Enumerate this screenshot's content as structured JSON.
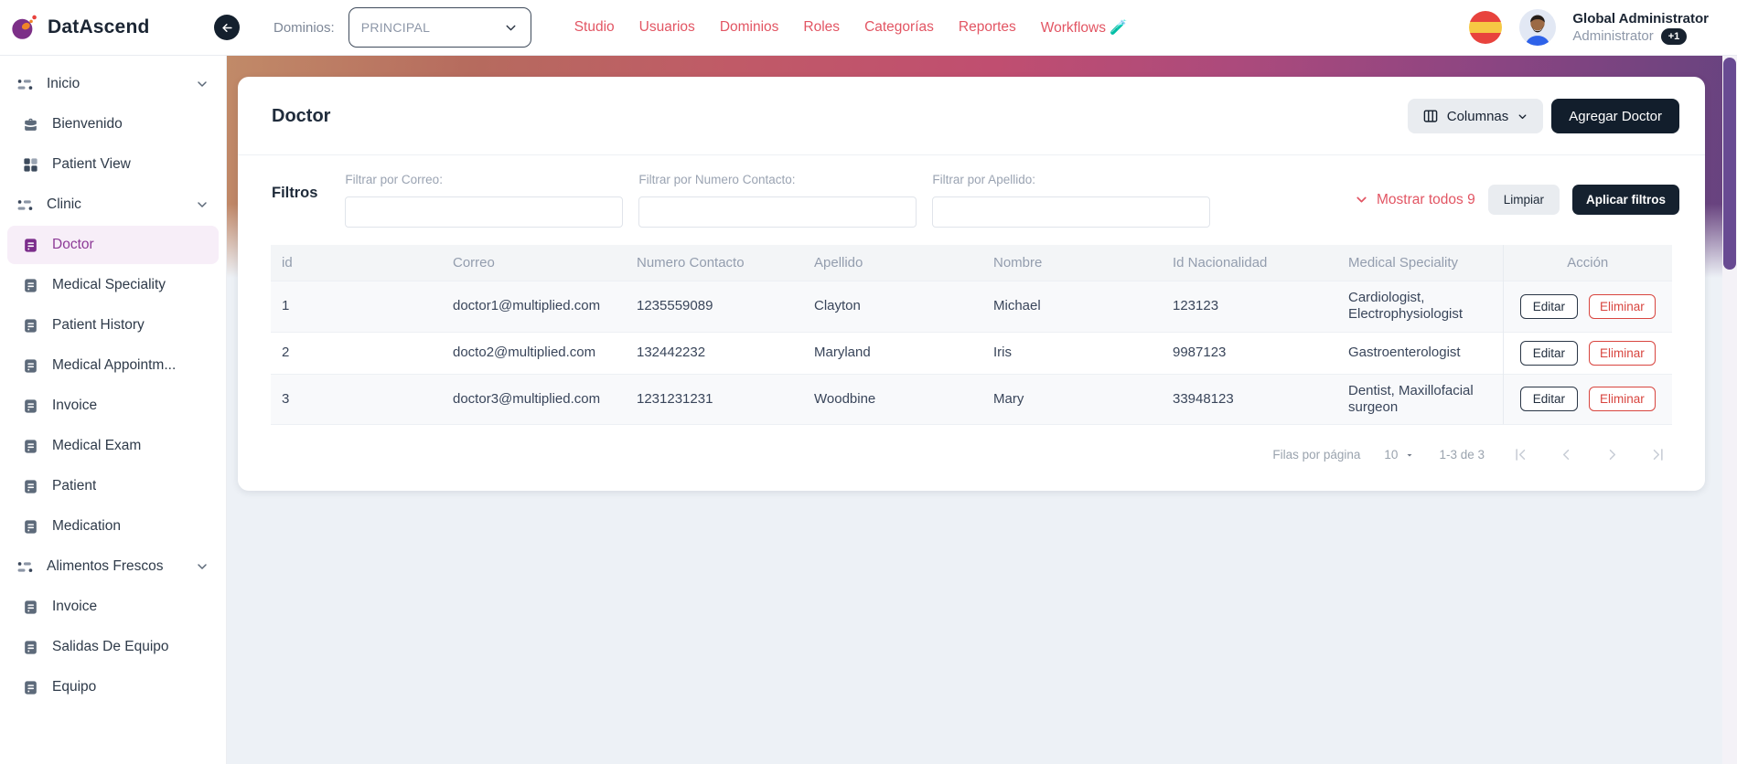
{
  "brand": {
    "name": "DatAscend"
  },
  "topbar": {
    "domains_label": "Dominios:",
    "domains_value": "PRINCIPAL",
    "nav": [
      {
        "id": "studio",
        "label": "Studio"
      },
      {
        "id": "usuarios",
        "label": "Usuarios"
      },
      {
        "id": "dominios",
        "label": "Dominios"
      },
      {
        "id": "roles",
        "label": "Roles"
      },
      {
        "id": "categorias",
        "label": "Categorías"
      },
      {
        "id": "reportes",
        "label": "Reportes"
      },
      {
        "id": "workflows",
        "label": "Workflows 🧪"
      }
    ],
    "user": {
      "name": "Global Administrator",
      "role": "Administrator",
      "badge": "+1"
    }
  },
  "sidebar": {
    "items": [
      {
        "id": "inicio",
        "label": "Inicio",
        "type": "group",
        "icon": "menu-group-icon"
      },
      {
        "id": "bienvenido",
        "label": "Bienvenido",
        "type": "item",
        "icon": "briefcase-icon"
      },
      {
        "id": "patient-view",
        "label": "Patient View",
        "type": "item",
        "icon": "grid-icon"
      },
      {
        "id": "clinic",
        "label": "Clinic",
        "type": "group",
        "icon": "menu-group-icon"
      },
      {
        "id": "doctor",
        "label": "Doctor",
        "type": "item",
        "icon": "doc-icon",
        "selected": true
      },
      {
        "id": "medical-speciality",
        "label": "Medical Speciality",
        "type": "item",
        "icon": "doc-icon"
      },
      {
        "id": "patient-history",
        "label": "Patient History",
        "type": "item",
        "icon": "doc-icon"
      },
      {
        "id": "medical-appointment",
        "label": "Medical Appointm...",
        "type": "item",
        "icon": "doc-icon"
      },
      {
        "id": "invoice",
        "label": "Invoice",
        "type": "item",
        "icon": "doc-icon"
      },
      {
        "id": "medical-exam",
        "label": "Medical Exam",
        "type": "item",
        "icon": "doc-icon"
      },
      {
        "id": "patient",
        "label": "Patient",
        "type": "item",
        "icon": "doc-icon"
      },
      {
        "id": "medication",
        "label": "Medication",
        "type": "item",
        "icon": "doc-icon"
      },
      {
        "id": "alimentos-frescos",
        "label": "Alimentos Frescos",
        "type": "group",
        "icon": "menu-group-icon"
      },
      {
        "id": "invoice-2",
        "label": "Invoice",
        "type": "item",
        "icon": "doc-icon"
      },
      {
        "id": "salidas-de-equipo",
        "label": "Salidas De Equipo",
        "type": "item",
        "icon": "doc-icon"
      },
      {
        "id": "equipo",
        "label": "Equipo",
        "type": "item",
        "icon": "doc-icon"
      }
    ]
  },
  "page": {
    "title": "Doctor",
    "columns_button": "Columnas",
    "add_button": "Agregar Doctor"
  },
  "filters": {
    "title": "Filtros",
    "fields": [
      {
        "id": "correo",
        "label": "Filtrar por Correo:",
        "value": ""
      },
      {
        "id": "numero-contacto",
        "label": "Filtrar por Numero Contacto:",
        "value": ""
      },
      {
        "id": "apellido",
        "label": "Filtrar por Apellido:",
        "value": ""
      }
    ],
    "show_all": "Mostrar todos 9",
    "clear_button": "Limpiar",
    "apply_button": "Aplicar filtros"
  },
  "table": {
    "columns": [
      "id",
      "Correo",
      "Numero Contacto",
      "Apellido",
      "Nombre",
      "Id Nacionalidad",
      "Medical Speciality",
      "Acción"
    ],
    "rows": [
      {
        "id": "1",
        "correo": "doctor1@multiplied.com",
        "numero": "1235559089",
        "apellido": "Clayton",
        "nombre": "Michael",
        "nacionalidad": "123123",
        "especialidad": "Cardiologist, Electrophysiologist"
      },
      {
        "id": "2",
        "correo": "docto2@multiplied.com",
        "numero": "132442232",
        "apellido": "Maryland",
        "nombre": "Iris",
        "nacionalidad": "9987123",
        "especialidad": "Gastroenterologist"
      },
      {
        "id": "3",
        "correo": "doctor3@multiplied.com",
        "numero": "1231231231",
        "apellido": "Woodbine",
        "nombre": "Mary",
        "nacionalidad": "33948123",
        "especialidad": "Dentist, Maxillofacial surgeon"
      }
    ],
    "edit_label": "Editar",
    "delete_label": "Eliminar"
  },
  "pagination": {
    "rows_per_page_label": "Filas por página",
    "rows_per_page": "10",
    "range": "1-3 de 3"
  },
  "colors": {
    "accent_red": "#e25563",
    "dark_navy": "#14202e",
    "selected_purple": "#7b2d8b",
    "selected_bg": "#f7eef8",
    "banner_left": "#c18a68",
    "banner_right": "#64437f",
    "scrollbar_thumb": "#684a92"
  }
}
